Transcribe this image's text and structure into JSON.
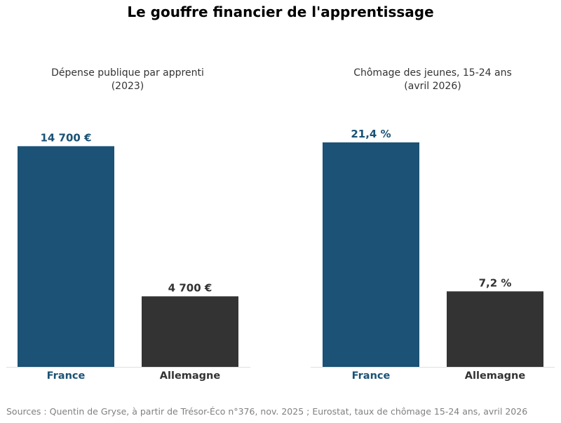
{
  "title": "Le gouffre financier de l'apprentissage",
  "footer": "Sources : Quentin de Gryse, à partir de Trésor-Éco n°376, nov. 2025 ; Eurostat, taux de chômage 15-24 ans, avril 2026",
  "colors": {
    "france": "#1b5275",
    "allemagne": "#333333",
    "baseline": "#e0e0e0"
  },
  "chart_data": [
    {
      "type": "bar",
      "title": "Dépense publique par apprenti",
      "subtitle": "(2023)",
      "categories": [
        "France",
        "Allemagne"
      ],
      "values": [
        14700,
        4700
      ],
      "value_labels": [
        "14 700 €",
        "4 700 €"
      ],
      "ylim": [
        0,
        15700
      ],
      "grid": false,
      "legend": "none"
    },
    {
      "type": "bar",
      "title": "Chômage des jeunes, 15-24 ans",
      "subtitle": "(avril 2026)",
      "categories": [
        "France",
        "Allemagne"
      ],
      "values": [
        21.4,
        7.2
      ],
      "value_labels": [
        "21,4 %",
        "7,2 %"
      ],
      "ylim": [
        0,
        22.47
      ],
      "grid": false,
      "legend": "none"
    }
  ]
}
